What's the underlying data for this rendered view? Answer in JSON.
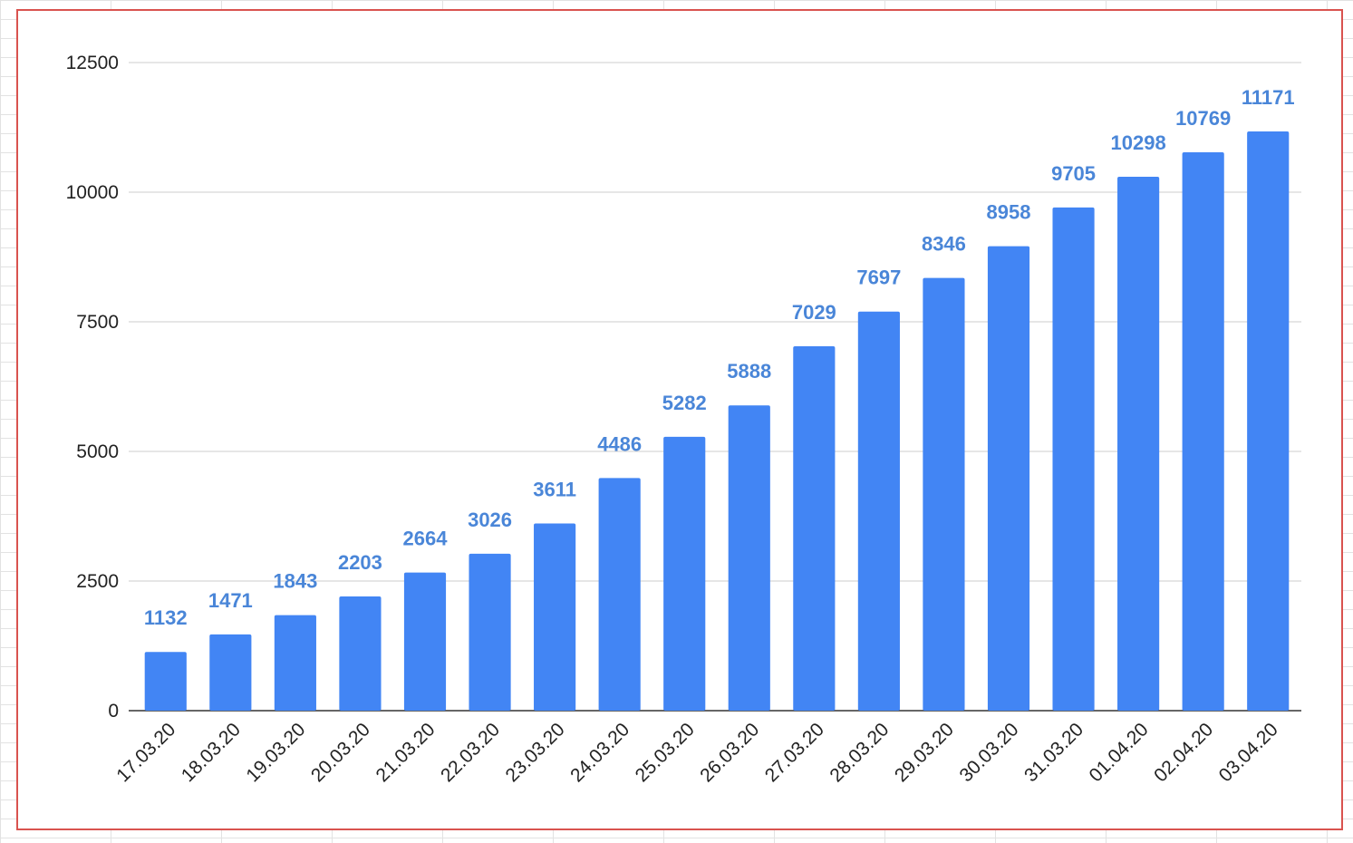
{
  "chart_data": {
    "type": "bar",
    "title": "",
    "xlabel": "",
    "ylabel": "",
    "categories": [
      "17.03.20",
      "18.03.20",
      "19.03.20",
      "20.03.20",
      "21.03.20",
      "22.03.20",
      "23.03.20",
      "24.03.20",
      "25.03.20",
      "26.03.20",
      "27.03.20",
      "28.03.20",
      "29.03.20",
      "30.03.20",
      "31.03.20",
      "01.04.20",
      "02.04.20",
      "03.04.20"
    ],
    "values": [
      1132,
      1471,
      1843,
      2203,
      2664,
      3026,
      3611,
      4486,
      5282,
      5888,
      7029,
      7697,
      8346,
      8958,
      9705,
      10298,
      10769,
      11171
    ],
    "ylim": [
      0,
      12500
    ],
    "yticks": [
      0,
      2500,
      5000,
      7500,
      10000,
      12500
    ],
    "grid": true,
    "legend": "none",
    "bar_color": "#4285f4",
    "label_color": "#4a86d8"
  }
}
